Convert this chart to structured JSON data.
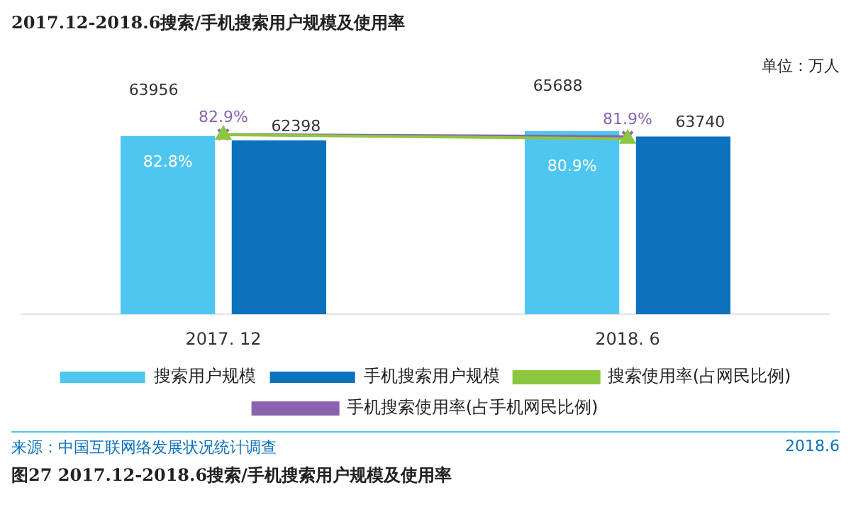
{
  "chart_data": {
    "type": "bar",
    "title": "2017.12-2018.6搜索/手机搜索用户规模及使用率",
    "categories": [
      "2017. 12",
      "2018. 6"
    ],
    "tick_labels": false,
    "legend": "bottom",
    "annotations": [
      "单位：万人",
      "来源：中国互联网络发展状况统计调查",
      "2018.6",
      "图27  2017.12-2018.6搜索/手机搜索用户规模及使用率"
    ],
    "series": [
      {
        "name": "搜索用户规模",
        "color": "#4fc6f0",
        "values": [
          63956,
          65688
        ],
        "value_labels": [
          "63956",
          "65688"
        ]
      },
      {
        "name": "手机搜索用户规模",
        "color": "#0c72bd",
        "values": [
          62398,
          63740
        ],
        "value_labels": [
          "62398",
          "63740"
        ]
      },
      {
        "name": "搜索使用率(占网民比例)",
        "type": "line",
        "axis": "y2",
        "marker": "triangle",
        "color": "#8dc63f",
        "values": [
          82.8,
          80.9
        ],
        "value_labels": [
          "82.8%",
          "80.9%"
        ]
      },
      {
        "name": "手机搜索使用率(占手机网民比例)",
        "type": "line",
        "axis": "y2",
        "marker": "cross",
        "color": "#8a63b0",
        "values": [
          82.9,
          81.9
        ],
        "value_labels": [
          "82.9%",
          "81.9%"
        ]
      }
    ]
  }
}
